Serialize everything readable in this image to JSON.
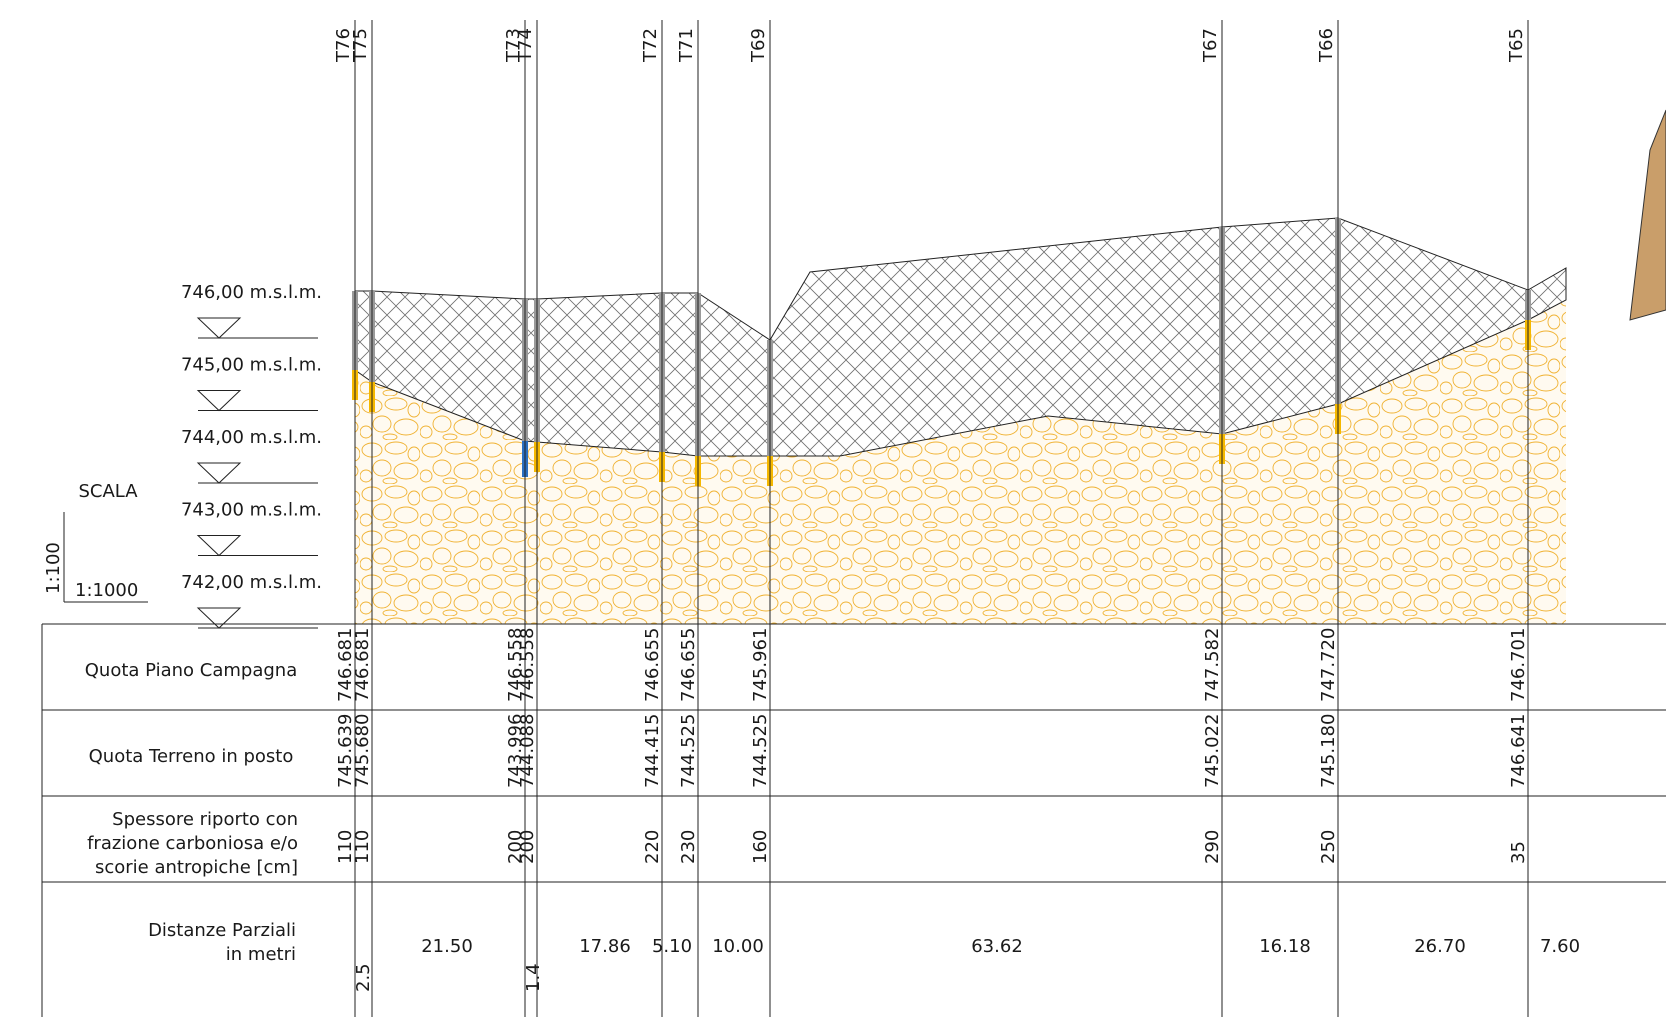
{
  "scale": {
    "title": "SCALA",
    "vertical": "1:100",
    "horizontal": "1:1000"
  },
  "elevation_unit": "m.s.l.m.",
  "elevation_levels": [
    {
      "value": 746,
      "label": "746,00 m.s.l.m."
    },
    {
      "value": 745,
      "label": "745,00 m.s.l.m."
    },
    {
      "value": 744,
      "label": "744,00 m.s.l.m."
    },
    {
      "value": 743,
      "label": "743,00 m.s.l.m."
    },
    {
      "value": 742,
      "label": "742,00 m.s.l.m."
    }
  ],
  "row_labels": {
    "quota_piano": [
      "Quota Piano Campagna"
    ],
    "quota_terreno": [
      "Quota Terreno in posto"
    ],
    "spessore": [
      "Spessore riporto con",
      "frazione carboniosa e/o",
      "scorie antropiche  [cm]"
    ],
    "distanze": [
      "Distanze Parziali",
      "in metri"
    ]
  },
  "boreholes": [
    {
      "id": "T76",
      "quota_piano": "746.681",
      "quota_terreno": "745.639",
      "spessore": "110"
    },
    {
      "id": "T75",
      "quota_piano": "746.681",
      "quota_terreno": "745.680",
      "spessore": "110"
    },
    {
      "id": "T73",
      "quota_piano": "746.558",
      "quota_terreno": "743.996",
      "spessore": "200"
    },
    {
      "id": "T74",
      "quota_piano": "746.558",
      "quota_terreno": "744.088",
      "spessore": "200"
    },
    {
      "id": "T72",
      "quota_piano": "746.655",
      "quota_terreno": "744.415",
      "spessore": "220"
    },
    {
      "id": "T71",
      "quota_piano": "746.655",
      "quota_terreno": "744.525",
      "spessore": "230"
    },
    {
      "id": "T69",
      "quota_piano": "745.961",
      "quota_terreno": "744.525",
      "spessore": "160"
    },
    {
      "id": "T67",
      "quota_piano": "747.582",
      "quota_terreno": "745.022",
      "spessore": "290"
    },
    {
      "id": "T66",
      "quota_piano": "747.720",
      "quota_terreno": "745.180",
      "spessore": "250"
    },
    {
      "id": "T65",
      "quota_piano": "746.701",
      "quota_terreno": "746.641",
      "spessore": "35"
    }
  ],
  "partial_distances": [
    "2.5",
    "21.50",
    "1.4",
    "17.86",
    "5.10",
    "10.00",
    "63.62",
    "16.18",
    "26.70",
    "7.60"
  ],
  "colors": {
    "fill_layer": "#7a7a7a",
    "natural_soil": "#f3c04a",
    "natural_soil_bg": "#fff8e6",
    "probe_fill": "#9a9a9a",
    "probe_natural": "#f5b800",
    "probe_water": "#2a6fc0",
    "line": "#222222"
  }
}
